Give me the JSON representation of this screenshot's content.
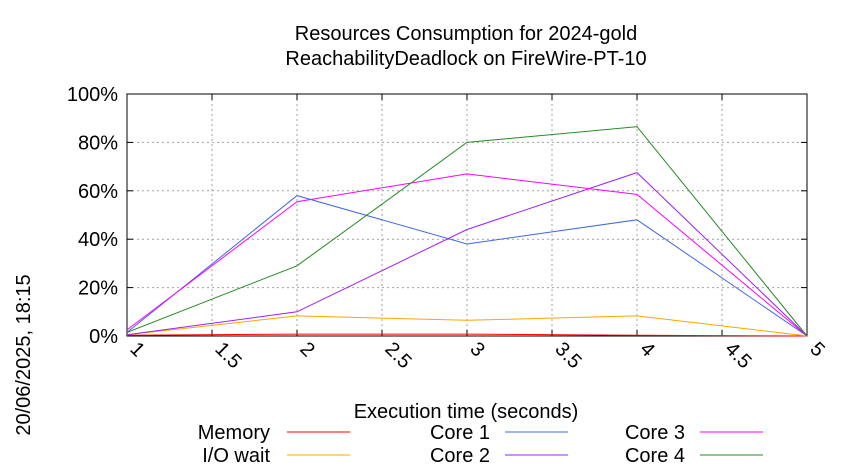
{
  "chart_data": {
    "type": "line",
    "title_line1": "Resources Consumption for 2024-gold",
    "title_line2": "ReachabilityDeadlock on FireWire-PT-10",
    "xlabel": "Execution time (seconds)",
    "ylabel": "",
    "timestamp": "20/06/2025, 18:15",
    "x": [
      1,
      2,
      3,
      4,
      5
    ],
    "xlim": [
      1,
      5
    ],
    "ylim": [
      0,
      100
    ],
    "x_ticks": [
      {
        "value": 1,
        "label": "1"
      },
      {
        "value": 1.5,
        "label": "1.5"
      },
      {
        "value": 2,
        "label": "2"
      },
      {
        "value": 2.5,
        "label": "2.5"
      },
      {
        "value": 3,
        "label": "3"
      },
      {
        "value": 3.5,
        "label": "3.5"
      },
      {
        "value": 4,
        "label": "4"
      },
      {
        "value": 4.5,
        "label": "4.5"
      },
      {
        "value": 5,
        "label": "5"
      }
    ],
    "y_ticks": [
      {
        "value": 0,
        "label": "0%"
      },
      {
        "value": 20,
        "label": "20%"
      },
      {
        "value": 40,
        "label": "40%"
      },
      {
        "value": 60,
        "label": "60%"
      },
      {
        "value": 80,
        "label": "80%"
      },
      {
        "value": 100,
        "label": "100%"
      }
    ],
    "grid": true,
    "legend_position": "bottom",
    "series": [
      {
        "name": "Memory",
        "color": "#ff0000",
        "values": [
          0.3,
          0.8,
          0.8,
          0.3,
          0
        ]
      },
      {
        "name": "I/O wait",
        "color": "#ffa500",
        "values": [
          0.5,
          8.3,
          6.5,
          8.3,
          0
        ]
      },
      {
        "name": "Core 1",
        "color": "#4169e1",
        "values": [
          1.5,
          58,
          38,
          48,
          0
        ]
      },
      {
        "name": "Core 2",
        "color": "#a020f0",
        "values": [
          0.5,
          10,
          44,
          67.5,
          0
        ]
      },
      {
        "name": "Core 3",
        "color": "#ff00ff",
        "values": [
          2.5,
          55.5,
          67,
          58.5,
          0
        ]
      },
      {
        "name": "Core 4",
        "color": "#228b22",
        "values": [
          1.5,
          29,
          80,
          86.5,
          0
        ]
      }
    ]
  }
}
